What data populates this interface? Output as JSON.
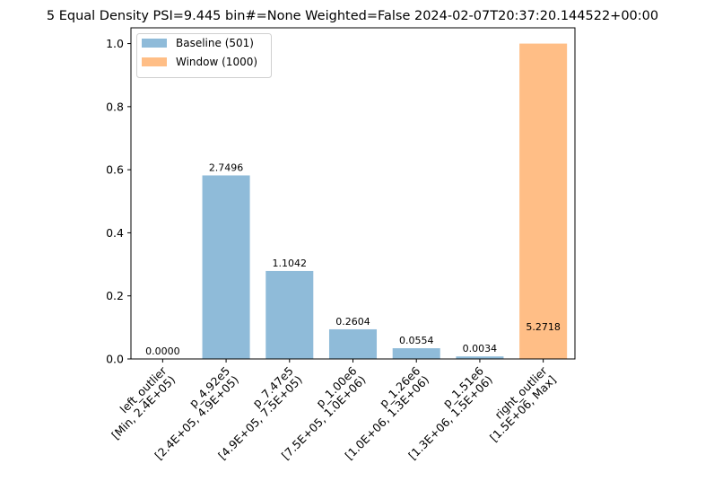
{
  "chart_data": {
    "type": "bar",
    "title": "5 Equal Density PSI=9.445 bin#=None Weighted=False 2024-02-07T20:37:20.144522+00:00",
    "xlabel": "",
    "ylabel": "",
    "ylim": [
      0,
      1.05
    ],
    "yticks": [
      "0.0",
      "0.2",
      "0.4",
      "0.6",
      "0.8",
      "1.0"
    ],
    "ytick_values": [
      0,
      0.2,
      0.4,
      0.6,
      0.8,
      1.0
    ],
    "categories": [
      [
        "left_outlier",
        "[Min, 2.4E+05)"
      ],
      [
        "p_4.92e5",
        "[2.4E+05, 4.9E+05)"
      ],
      [
        "p_7.47e5",
        "[4.9E+05, 7.5E+05)"
      ],
      [
        "p_1.00e6",
        "[7.5E+05, 1.0E+06)"
      ],
      [
        "p_1.26e6",
        "[1.0E+06, 1.3E+06)"
      ],
      [
        "p_1.51e6",
        "[1.3E+06, 1.5E+06)"
      ],
      [
        "right_outlier",
        "[1.5E+06, Max]"
      ]
    ],
    "series": [
      {
        "name": "Baseline (501)",
        "color": "#8fbbd9",
        "values": [
          0.0,
          0.582,
          0.279,
          0.094,
          0.034,
          0.008,
          0.0
        ]
      },
      {
        "name": "Window (1000)",
        "color": "#ffbe86",
        "values": [
          0.0,
          0.0,
          0.0,
          0.0,
          0.0,
          0.0,
          1.0
        ]
      }
    ],
    "bar_labels": [
      "0.0000",
      "2.7496",
      "1.1042",
      "0.2604",
      "0.0554",
      "0.0034",
      "5.2718"
    ],
    "legend_position": "upper-left",
    "grid": false
  }
}
